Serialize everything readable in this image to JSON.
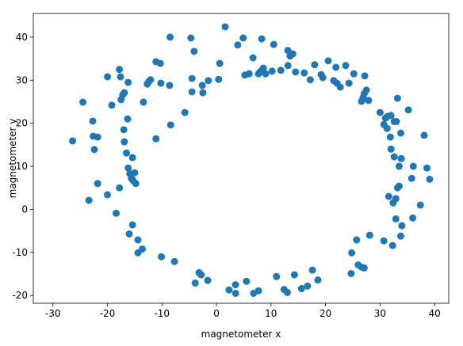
{
  "chart_data": {
    "type": "scatter",
    "x_label": "magnetometer x",
    "y_label": "magnetometer y",
    "color": "#1f77b4",
    "xlim": [
      -33.6,
      42.6
    ],
    "ylim": [
      -21.8,
      45.5
    ],
    "xticks": [
      -30,
      -20,
      -10,
      0,
      10,
      20,
      30,
      40
    ],
    "yticks": [
      -20,
      -10,
      0,
      10,
      20,
      30,
      40
    ],
    "grid": false,
    "x": [
      -26.4,
      -24.5,
      -23.4,
      -22.7,
      -22.6,
      -22.4,
      -21.8,
      -21.8,
      -20.0,
      -20.0,
      -19.2,
      -18.4,
      -17.8,
      -17.6,
      -17.8,
      -17.5,
      -17.2,
      -16.9,
      -17.0,
      -16.9,
      -16.5,
      -16.3,
      -16.2,
      -16.2,
      -15.9,
      -15.6,
      -15.4,
      -15.4,
      -16.0,
      -15.3,
      -15.0,
      -14.8,
      -14.4,
      -14.4,
      -13.6,
      -13.4,
      -12.7,
      -12.4,
      -12.1,
      -11.1,
      -10.3,
      -11.1,
      -10.2,
      -10.1,
      -8.6,
      -8.5,
      -8.4,
      -7.7,
      -5.8,
      -4.7,
      -4.5,
      -4.5,
      -4.1,
      -3.9,
      -3.2,
      -2.8,
      -2.6,
      -2.5,
      -1.5,
      -1.6,
      0.6,
      0.4,
      1.6,
      2.3,
      3.5,
      3.5,
      3.9,
      4.9,
      5.2,
      5.5,
      6.0,
      6.7,
      6.8,
      7.7,
      7.7,
      8.0,
      8.3,
      8.3,
      8.6,
      9.0,
      10.2,
      10.5,
      11.0,
      11.8,
      12.4,
      13.1,
      13.1,
      13.5,
      13.0,
      14.0,
      14.3,
      14.5,
      15.6,
      16.1,
      16.7,
      17.2,
      17.6,
      18.0,
      18.6,
      19.2,
      19.5,
      20.5,
      21.5,
      22.1,
      21.9,
      22.7,
      23.7,
      24.3,
      25.2,
      24.7,
      24.8,
      25.7,
      26.0,
      26.6,
      26.6,
      26.9,
      27.1,
      27.1,
      27.2,
      27.5,
      27.9,
      28.1,
      30.0,
      30.7,
      30.7,
      31.0,
      31.3,
      31.4,
      31.6,
      31.9,
      32.0,
      32.0,
      32.3,
      32.4,
      32.6,
      32.6,
      32.9,
      32.9,
      33.0,
      33.2,
      33.2,
      33.5,
      33.5,
      33.8,
      33.9,
      34.0,
      33.8,
      35.2,
      35.8,
      36.0,
      36.1,
      37.4,
      38.1,
      38.6,
      39.1
    ],
    "values": [
      15.9,
      24.9,
      2.1,
      20.5,
      17.0,
      13.9,
      16.8,
      6.0,
      30.8,
      3.4,
      24.2,
      -0.9,
      32.5,
      30.8,
      5.0,
      25.5,
      26.6,
      27.1,
      18.5,
      15.7,
      13.1,
      21.0,
      29.5,
      9.6,
      8.3,
      7.2,
      12.0,
      -3.6,
      -5.7,
      6.7,
      8.5,
      6.0,
      -7.1,
      -10.1,
      -9.2,
      24.9,
      29.1,
      29.7,
      30.1,
      34.3,
      33.9,
      16.4,
      29.3,
      -11.0,
      28.8,
      40.0,
      19.6,
      -12.1,
      22.5,
      39.8,
      27.3,
      30.4,
      36.7,
      -17.1,
      -14.7,
      -15.2,
      28.8,
      27.1,
      29.9,
      -16.5,
      33.9,
      30.2,
      42.4,
      -18.7,
      -17.5,
      -19.5,
      38.2,
      39.8,
      31.2,
      -16.7,
      31.5,
      35.2,
      -19.5,
      31.5,
      -18.9,
      31.9,
      39.6,
      32.3,
      32.8,
      31.5,
      32.1,
      38.3,
      -15.6,
      32.3,
      -18.6,
      33.4,
      36.9,
      35.6,
      -19.3,
      36.1,
      -15.2,
      31.9,
      -18.4,
      31.7,
      -17.8,
      30.1,
      -14.1,
      33.6,
      -16.4,
      31.3,
      30.6,
      34.5,
      29.9,
      29.3,
      33.0,
      28.4,
      33.4,
      29.3,
      31.5,
      -14.9,
      -10.1,
      -7.1,
      -12.9,
      25.1,
      -13.4,
      26.0,
      -13.6,
      26.9,
      31.0,
      27.7,
      25.3,
      -6.0,
      22.5,
      -7.3,
      19.7,
      21.2,
      18.8,
      21.6,
      3.0,
      16.8,
      14.0,
      21.8,
      -8.4,
      1.5,
      12.2,
      20.4,
      2.5,
      -2.2,
      20.4,
      25.8,
      5.0,
      5.4,
      10.0,
      17.7,
      11.8,
      -3.8,
      -6.2,
      23.1,
      7.2,
      -2.0,
      10.0,
      1.0,
      17.2,
      9.6,
      7.0
    ]
  }
}
